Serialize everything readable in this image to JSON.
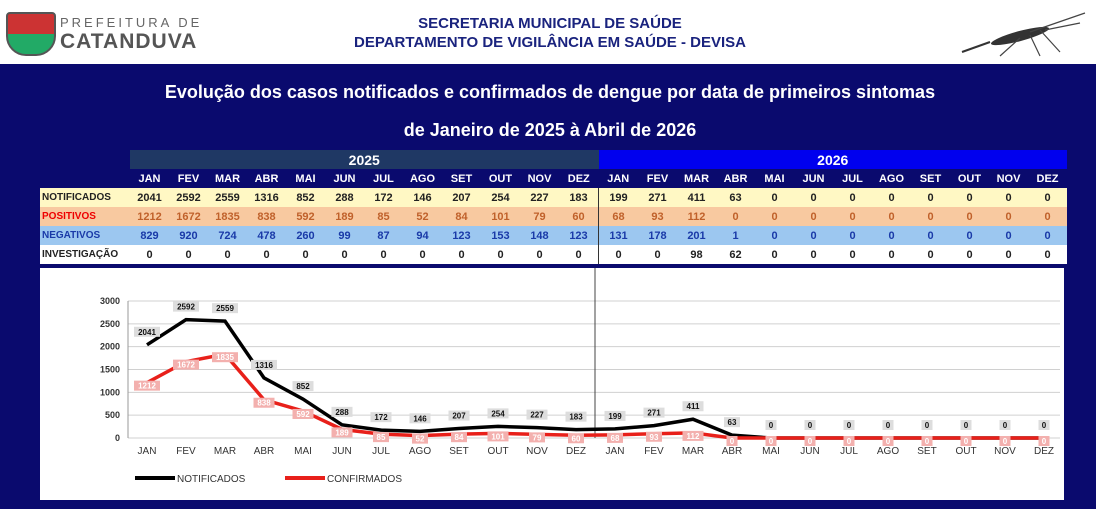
{
  "header": {
    "org_line1": "PREFEITURA DE",
    "org_line2": "CATANDUVA",
    "title1": "SECRETARIA MUNICIPAL DE SAÚDE",
    "title2": "DEPARTAMENTO DE VIGILÂNCIA EM SAÚDE - DEVISA"
  },
  "panel": {
    "title1": "Evolução dos casos notificados e confirmados de dengue por data de primeiros sintomas",
    "title2": "de Janeiro de 2025 à Abril de 2026"
  },
  "table": {
    "years": [
      "2025",
      "2026"
    ],
    "months": [
      "JAN",
      "FEV",
      "MAR",
      "ABR",
      "MAI",
      "JUN",
      "JUL",
      "AGO",
      "SET",
      "OUT",
      "NOV",
      "DEZ",
      "JAN",
      "FEV",
      "MAR",
      "ABR",
      "MAI",
      "JUN",
      "JUL",
      "AGO",
      "SET",
      "OUT",
      "NOV",
      "DEZ"
    ],
    "rows": [
      {
        "label": "NOTIFICADOS",
        "values": [
          2041,
          2592,
          2559,
          1316,
          852,
          288,
          172,
          146,
          207,
          254,
          227,
          183,
          199,
          271,
          411,
          63,
          0,
          0,
          0,
          0,
          0,
          0,
          0,
          0
        ]
      },
      {
        "label": "POSITIVOS",
        "values": [
          1212,
          1672,
          1835,
          838,
          592,
          189,
          85,
          52,
          84,
          101,
          79,
          60,
          68,
          93,
          112,
          0,
          0,
          0,
          0,
          0,
          0,
          0,
          0,
          0
        ]
      },
      {
        "label": "NEGATIVOS",
        "values": [
          829,
          920,
          724,
          478,
          260,
          99,
          87,
          94,
          123,
          153,
          148,
          123,
          131,
          178,
          201,
          1,
          0,
          0,
          0,
          0,
          0,
          0,
          0,
          0
        ]
      },
      {
        "label": "INVESTIGAÇÃO",
        "values": [
          0,
          0,
          0,
          0,
          0,
          0,
          0,
          0,
          0,
          0,
          0,
          0,
          0,
          0,
          98,
          62,
          0,
          0,
          0,
          0,
          0,
          0,
          0,
          0
        ]
      }
    ]
  },
  "chart_data": {
    "type": "line",
    "categories": [
      "JAN",
      "FEV",
      "MAR",
      "ABR",
      "MAI",
      "JUN",
      "JUL",
      "AGO",
      "SET",
      "OUT",
      "NOV",
      "DEZ",
      "JAN",
      "FEV",
      "MAR",
      "ABR",
      "MAI",
      "JUN",
      "JUL",
      "AGO",
      "SET",
      "OUT",
      "NOV",
      "DEZ"
    ],
    "yticks": [
      0,
      500,
      1000,
      1500,
      2000,
      2500,
      3000
    ],
    "ylim": [
      0,
      3000
    ],
    "grid": true,
    "legend": "bottom-left",
    "series": [
      {
        "name": "NOTIFICADOS",
        "color": "#000000",
        "values": [
          2041,
          2592,
          2559,
          1316,
          852,
          288,
          172,
          146,
          207,
          254,
          227,
          183,
          199,
          271,
          411,
          63,
          0,
          0,
          0,
          0,
          0,
          0,
          0,
          0
        ]
      },
      {
        "name": "CONFIRMADOS",
        "color": "#e8201a",
        "values": [
          1212,
          1672,
          1835,
          838,
          592,
          189,
          85,
          52,
          84,
          101,
          79,
          60,
          68,
          93,
          112,
          0,
          0,
          0,
          0,
          0,
          0,
          0,
          0,
          0
        ]
      }
    ]
  }
}
